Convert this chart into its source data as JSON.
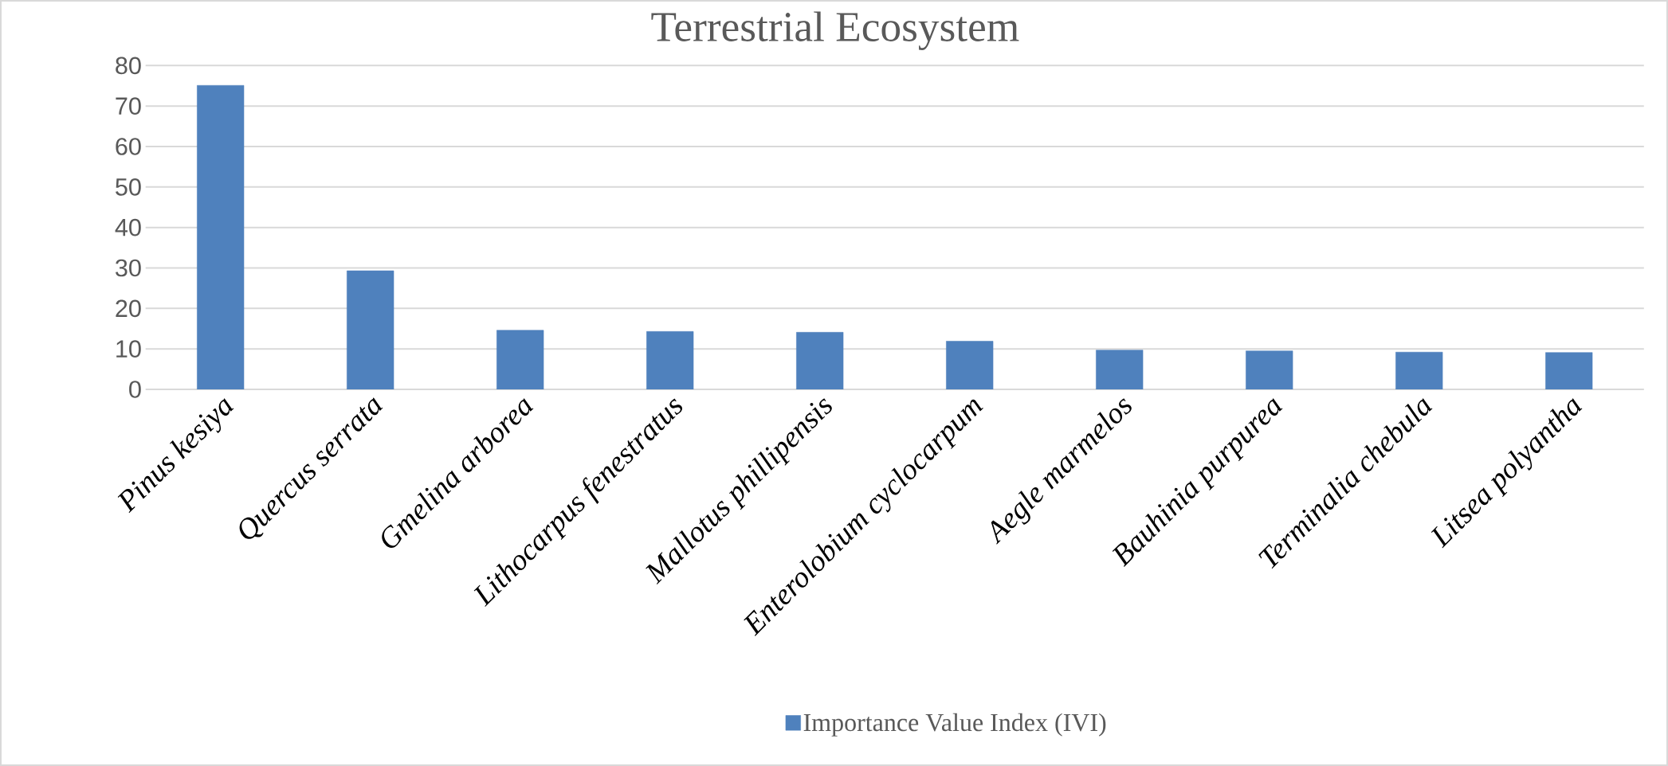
{
  "chart_data": {
    "type": "bar",
    "title": "Terrestrial Ecosystem",
    "categories": [
      "Pinus kesiya",
      "Quercus serrata",
      "Gmelina arborea",
      "Lithocarpus fenestratus",
      "Mallotus phillipensis",
      "Enterolobium cyclocarpum",
      "Aegle marmelos",
      "Bauhinia purpurea",
      "Terminalia chebula",
      "Litsea polyantha"
    ],
    "series": [
      {
        "name": "Importance Value Index (IVI)",
        "color": "#4f81bd",
        "values": [
          75.1,
          29.3,
          14.6,
          14.3,
          14.1,
          11.9,
          9.7,
          9.5,
          9.2,
          9.1
        ]
      }
    ],
    "ylim": [
      0,
      80
    ],
    "yticks": [
      0,
      10,
      20,
      30,
      40,
      50,
      60,
      70,
      80
    ],
    "grid": "y",
    "legend": "bottom"
  }
}
